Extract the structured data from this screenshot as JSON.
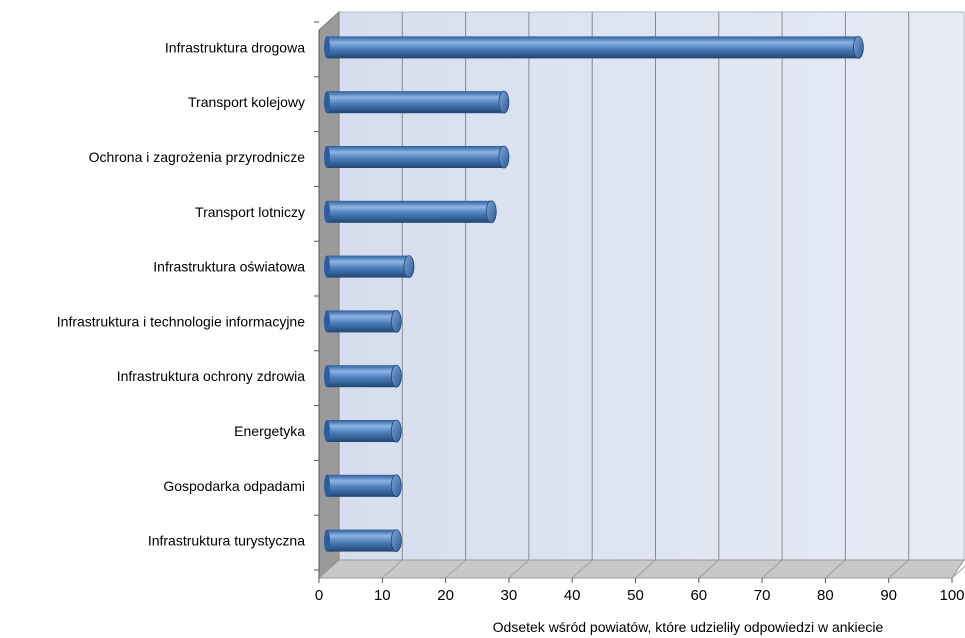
{
  "chart_data": {
    "type": "bar",
    "orientation": "horizontal",
    "style": "3d-cylinder",
    "categories": [
      "Infrastruktura drogowa",
      "Transport kolejowy",
      "Ochrona i zagrożenia przyrodnicze",
      "Transport lotniczy",
      "Infrastruktura oświatowa",
      "Infrastruktura i technologie informacyjne",
      "Infrastruktura ochrony zdrowia",
      "Energetyka",
      "Gospodarka odpadami",
      "Infrastruktura turystyczna"
    ],
    "values": [
      83,
      27,
      27,
      25,
      12,
      10,
      10,
      10,
      10,
      10
    ],
    "xlabel": "Odsetek wśród powiatów, które udzieliły odpowiedzi w ankiecie",
    "xlim": [
      0,
      100
    ],
    "xticks": [
      "0",
      "10",
      "20",
      "30",
      "40",
      "50",
      "60",
      "70",
      "80",
      "90",
      "100"
    ],
    "grid": "vertical",
    "legend": "none",
    "colors": {
      "bar": "#4f81bd",
      "bar_dark": "#1f4e8c",
      "bar_light": "#9dbde6",
      "wall": "#dfe6f2",
      "floor": "#c8c8c8",
      "side_wall": "#9a9a9a",
      "gridline": "#8a8a8a"
    }
  }
}
